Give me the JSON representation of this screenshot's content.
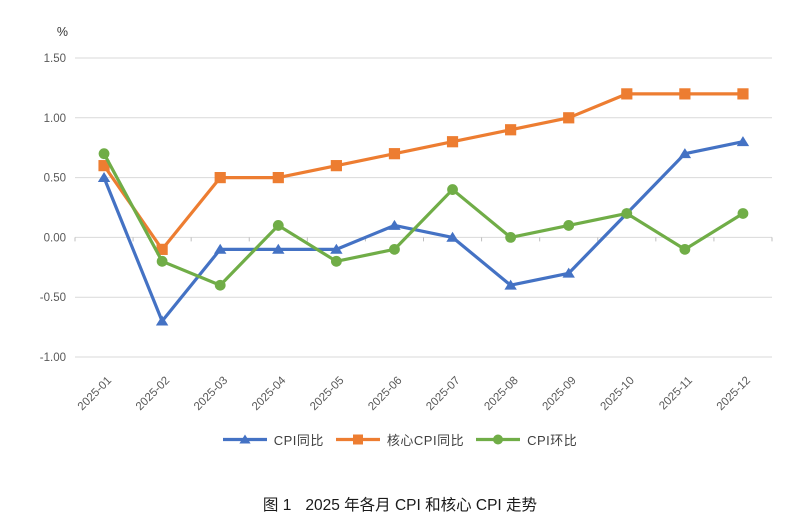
{
  "unit_label": "%",
  "caption": {
    "prefix": "图 1",
    "title": "2025 年各月 CPI 和核心 CPI 走势"
  },
  "colors": {
    "gridline": "#D9D9D9",
    "tick": "#BFBFBF",
    "axis_text": "#595959",
    "legend_text": "#404040",
    "caption_text": "#1A1A1A",
    "background": "#FFFFFF"
  },
  "chart_data": {
    "type": "line",
    "x": [
      "2025-01",
      "2025-02",
      "2025-03",
      "2025-04",
      "2025-05",
      "2025-06",
      "2025-07",
      "2025-08",
      "2025-09",
      "2025-10",
      "2025-11",
      "2025-12"
    ],
    "series": [
      {
        "name": "CPI同比",
        "marker": "triangle",
        "color": "#4472C4",
        "values": [
          0.5,
          -0.7,
          -0.1,
          -0.1,
          -0.1,
          0.1,
          0.0,
          -0.4,
          -0.3,
          0.2,
          0.7,
          0.8
        ]
      },
      {
        "name": "核心CPI同比",
        "marker": "square",
        "color": "#ED7D31",
        "values": [
          0.6,
          -0.1,
          0.5,
          0.5,
          0.6,
          0.7,
          0.8,
          0.9,
          1.0,
          1.2,
          1.2,
          1.2
        ]
      },
      {
        "name": "CPI环比",
        "marker": "circle",
        "color": "#70AD47",
        "values": [
          0.7,
          -0.2,
          -0.4,
          0.1,
          -0.2,
          -0.1,
          0.4,
          0.0,
          0.1,
          0.2,
          -0.1,
          0.2
        ]
      }
    ],
    "ylabel": "%",
    "ylim": [
      -1.0,
      1.5
    ],
    "ytick_step": 0.5,
    "ytick_labels": [
      "-1.00",
      "-0.50",
      "0.00",
      "0.50",
      "1.00",
      "1.50"
    ],
    "grid": true,
    "legend_position": "bottom"
  }
}
